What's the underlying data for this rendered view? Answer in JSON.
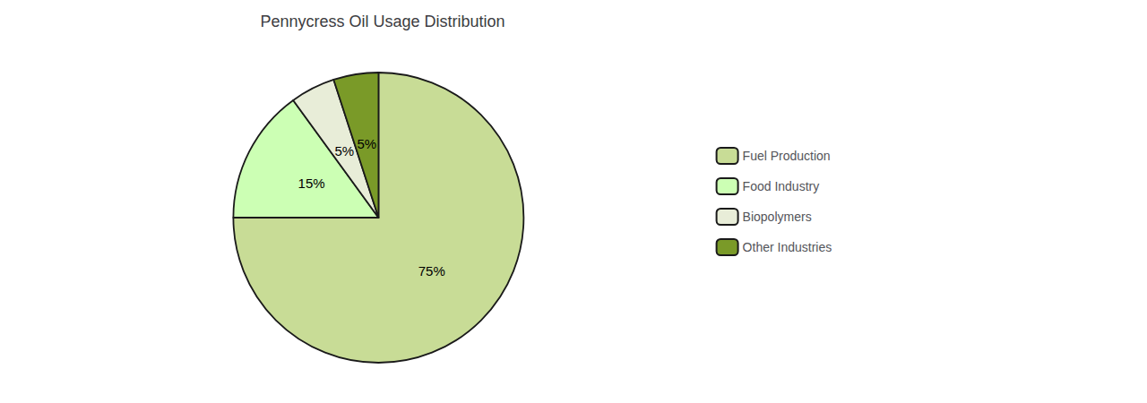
{
  "chart_data": {
    "type": "pie",
    "title": "Pennycress Oil Usage Distribution",
    "categories": [
      "Fuel Production",
      "Food Industry",
      "Biopolymers",
      "Other Industries"
    ],
    "values": [
      75,
      15,
      5,
      5
    ],
    "value_labels": [
      "75%",
      "15%",
      "5%",
      "5%"
    ],
    "colors": [
      "#c8dc96",
      "#ccffb4",
      "#e8edd8",
      "#7a9a28"
    ],
    "data_labels": true,
    "legend": "right"
  }
}
